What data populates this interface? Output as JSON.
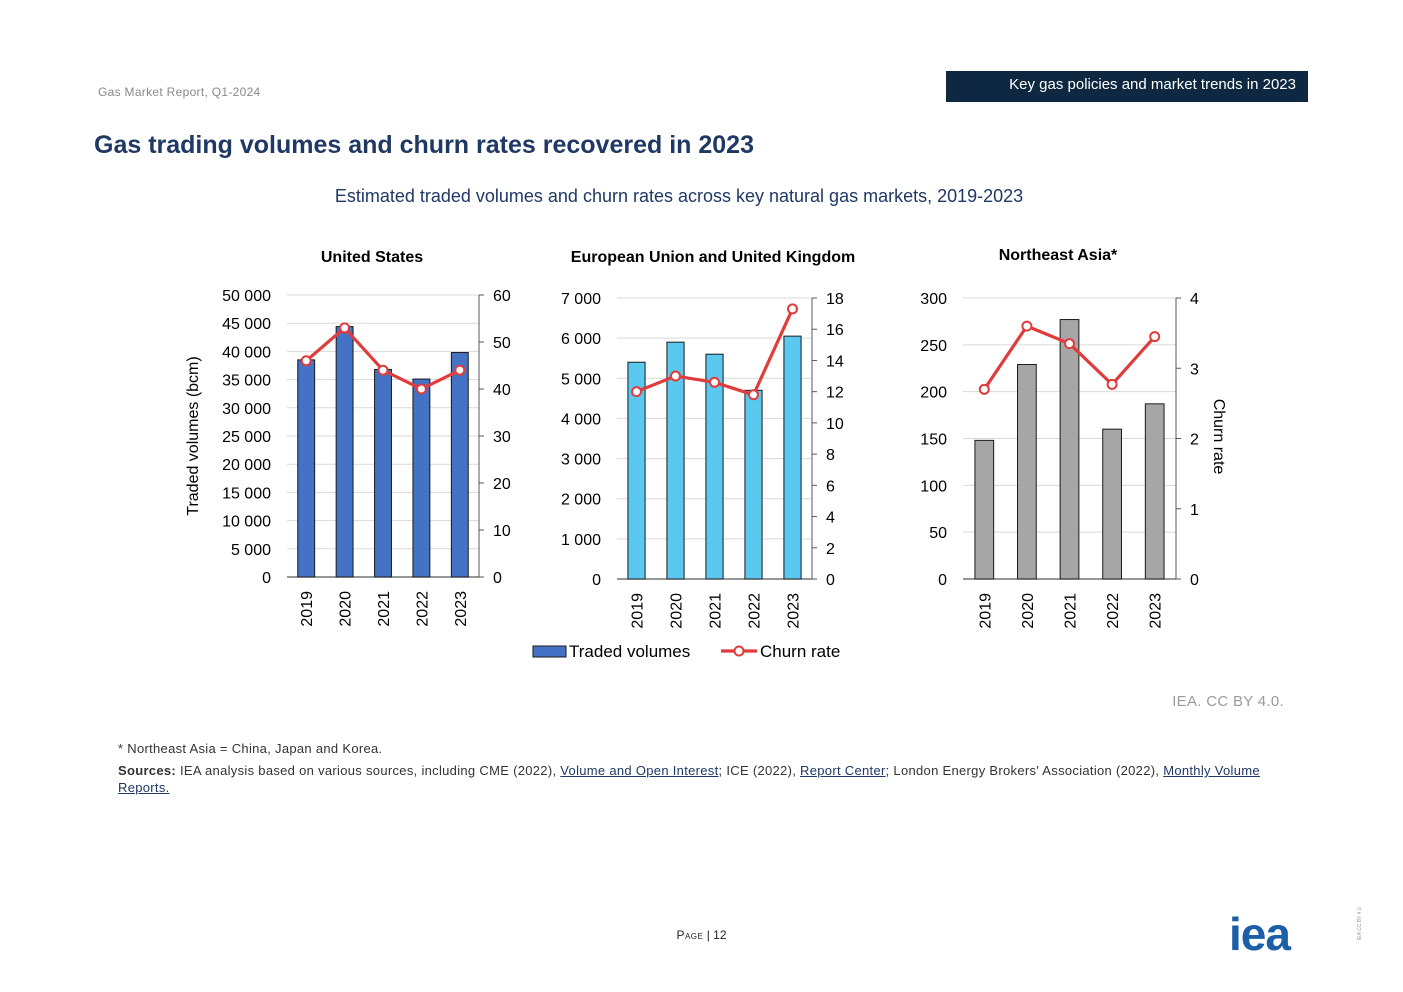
{
  "header": {
    "report_name": "Gas Market Report, Q1-2024",
    "section_tag": "Key gas policies and market trends in 2023"
  },
  "title": "Gas trading volumes and churn rates recovered in 2023",
  "figure_title": "Estimated traded volumes and churn rates across key natural gas markets, 2019-2023",
  "colors": {
    "us_bar": "#4472c4",
    "eu_bar": "#5bc8f0",
    "ne_bar": "#a6a6a6",
    "churn_line": "#e03c3c",
    "title": "#1f3864"
  },
  "chart_data": [
    {
      "type": "bar",
      "title": "United States",
      "categories": [
        "2019",
        "2020",
        "2021",
        "2022",
        "2023"
      ],
      "ylabel": "Traded volumes (bcm)",
      "ylim": [
        0,
        50000
      ],
      "y_ticks": [
        "50 000",
        "45 000",
        "40 000",
        "35 000",
        "30 000",
        "25 000",
        "20 000",
        "15 000",
        "10 000",
        "5 000",
        "0"
      ],
      "y2lim": [
        0,
        60
      ],
      "y2_ticks": [
        "60",
        "50",
        "40",
        "30",
        "20",
        "10",
        "0"
      ],
      "series": [
        {
          "name": "Traded volumes",
          "type": "bar",
          "axis": "primary",
          "values": [
            38500,
            44400,
            36800,
            35100,
            39800
          ]
        },
        {
          "name": "Churn rate",
          "type": "line",
          "axis": "secondary",
          "values": [
            46,
            53,
            44,
            40,
            44
          ]
        }
      ]
    },
    {
      "type": "bar",
      "title": "European Union and United Kingdom",
      "categories": [
        "2019",
        "2020",
        "2021",
        "2022",
        "2023"
      ],
      "ylim": [
        0,
        7000
      ],
      "y_ticks": [
        "7 000",
        "6 000",
        "5 000",
        "4 000",
        "3 000",
        "2 000",
        "1 000",
        "0"
      ],
      "y2lim": [
        0,
        18
      ],
      "y2_ticks": [
        "18",
        "16",
        "14",
        "12",
        "10",
        "8",
        "6",
        "4",
        "2",
        "0"
      ],
      "series": [
        {
          "name": "Traded volumes",
          "type": "bar",
          "axis": "primary",
          "values": [
            5400,
            5900,
            5600,
            4700,
            6050
          ]
        },
        {
          "name": "Churn rate",
          "type": "line",
          "axis": "secondary",
          "values": [
            12,
            13,
            12.6,
            11.8,
            17.3
          ]
        }
      ]
    },
    {
      "type": "bar",
      "title": "Northeast Asia*",
      "categories": [
        "2019",
        "2020",
        "2021",
        "2022",
        "2023"
      ],
      "ylim": [
        0,
        300
      ],
      "y_ticks": [
        "300",
        "250",
        "200",
        "150",
        "100",
        "50",
        "0"
      ],
      "y2label": "Churn rate",
      "y2lim": [
        0,
        4
      ],
      "y2_ticks": [
        "4",
        "3",
        "2",
        "1",
        "0"
      ],
      "series": [
        {
          "name": "Traded volumes",
          "type": "bar",
          "axis": "primary",
          "values": [
            148,
            229,
            277,
            160,
            187
          ]
        },
        {
          "name": "Churn rate",
          "type": "line",
          "axis": "secondary",
          "values": [
            2.7,
            3.6,
            3.35,
            2.77,
            3.45
          ]
        }
      ]
    }
  ],
  "legend": {
    "traded": "Traded volumes",
    "churn": "Churn rate"
  },
  "credit": "IEA. CC BY 4.0.",
  "footnote": "* Northeast Asia = China, Japan and Korea.",
  "sources": {
    "label": "Sources",
    "text1": " IEA analysis based on various sources, including CME (2022), ",
    "link1": "Volume and Open Interest",
    "text2": "; ICE (2022), ",
    "link2": "Report Center",
    "text3": "; London Energy Brokers' Association (2022), ",
    "link3": "Monthly Volume Reports."
  },
  "page": {
    "label": "Page",
    "number": "12"
  },
  "logo": "iea",
  "side_license": "IEA CC BY 4.0."
}
